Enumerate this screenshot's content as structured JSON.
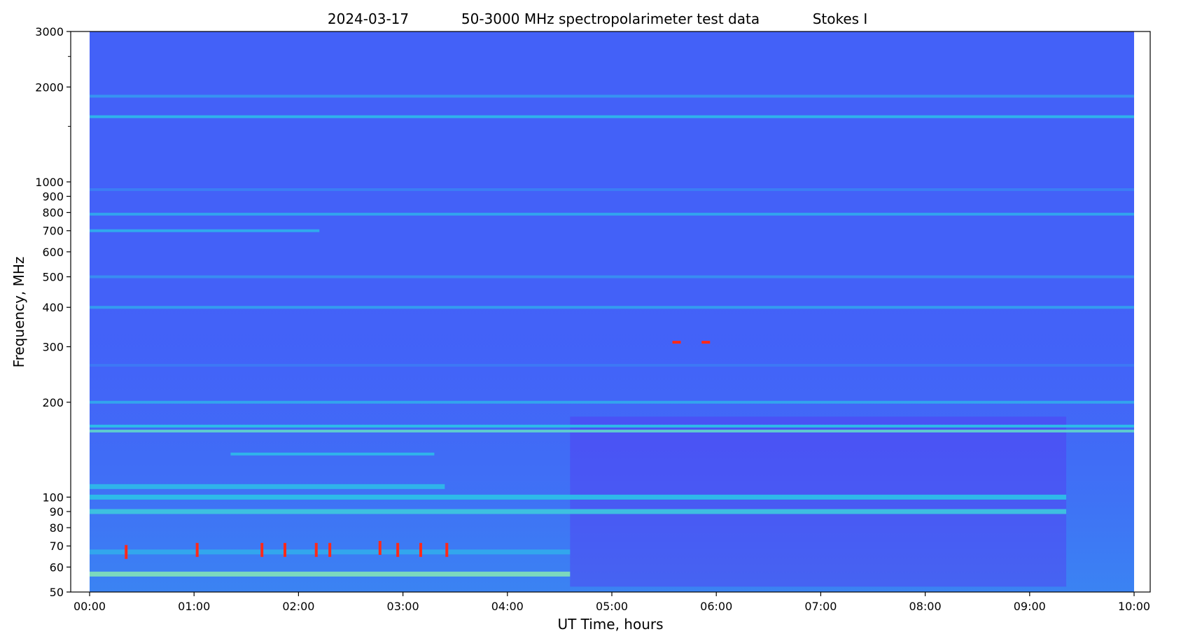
{
  "chart_data": {
    "type": "heatmap",
    "title_parts": [
      "2024-03-17",
      "50-3000 MHz spectropolarimeter test data",
      "Stokes I"
    ],
    "xlabel": "UT Time, hours",
    "ylabel": "Frequency, MHz",
    "x_unit": "hours",
    "xlim": [
      0,
      10
    ],
    "x_ticks": [
      0,
      1,
      2,
      3,
      4,
      5,
      6,
      7,
      8,
      9,
      10
    ],
    "x_tick_labels": [
      "00:00",
      "01:00",
      "02:00",
      "03:00",
      "04:00",
      "05:00",
      "06:00",
      "07:00",
      "08:00",
      "09:00",
      "10:00"
    ],
    "y_scale": "log",
    "ylim": [
      50,
      3000
    ],
    "y_ticks": [
      50,
      60,
      70,
      80,
      90,
      100,
      200,
      300,
      400,
      500,
      600,
      700,
      800,
      900,
      1000,
      2000,
      3000
    ],
    "y_tick_labels": [
      "50",
      "60",
      "70",
      "80",
      "90",
      "100",
      "200",
      "300",
      "400",
      "500",
      "600",
      "700",
      "800",
      "900",
      "1000",
      "2000",
      "3000"
    ],
    "y_minor_ticks": [
      1500,
      2500
    ],
    "colormap": "rainbow",
    "colors": {
      "background": "#4361f8",
      "low": "#5b2cf0",
      "mid": "#2bc3e8",
      "high": "#b8f49a",
      "peak": "#ff2a1a"
    },
    "data_extent_hours": [
      0,
      10
    ],
    "gap_after_hours": 9.35,
    "horizontal_bands": [
      {
        "freq_mhz": 1610,
        "level": 0.55,
        "from": 0,
        "to": 10
      },
      {
        "freq_mhz": 1870,
        "level": 0.35,
        "from": 0,
        "to": 10
      },
      {
        "freq_mhz": 945,
        "level": 0.2,
        "from": 0,
        "to": 10
      },
      {
        "freq_mhz": 790,
        "level": 0.45,
        "from": 0,
        "to": 10
      },
      {
        "freq_mhz": 700,
        "level": 0.5,
        "from": 0,
        "to": 2.2
      },
      {
        "freq_mhz": 500,
        "level": 0.3,
        "from": 0,
        "to": 10
      },
      {
        "freq_mhz": 400,
        "level": 0.4,
        "from": 0,
        "to": 10
      },
      {
        "freq_mhz": 262,
        "level": 0.15,
        "from": 0,
        "to": 10
      },
      {
        "freq_mhz": 200,
        "level": 0.45,
        "from": 0,
        "to": 10
      },
      {
        "freq_mhz": 168,
        "level": 0.6,
        "from": 0,
        "to": 10
      },
      {
        "freq_mhz": 162,
        "level": 0.75,
        "from": 0,
        "to": 10
      },
      {
        "freq_mhz": 137,
        "level": 0.55,
        "from": 1.35,
        "to": 3.3
      },
      {
        "freq_mhz": 108,
        "level": 0.55,
        "from": 0,
        "to": 3.4
      },
      {
        "freq_mhz": 100,
        "level": 0.6,
        "from": 0,
        "to": 9.35
      },
      {
        "freq_mhz": 90,
        "level": 0.65,
        "from": 0,
        "to": 9.35
      },
      {
        "freq_mhz": 67,
        "level": 0.45,
        "from": 0,
        "to": 4.6
      },
      {
        "freq_mhz": 57,
        "level": 0.85,
        "from": 0,
        "to": 4.6
      }
    ],
    "bursts": [
      {
        "time_hours": 0.35,
        "freq_mhz": 67
      },
      {
        "time_hours": 1.03,
        "freq_mhz": 68
      },
      {
        "time_hours": 1.65,
        "freq_mhz": 68
      },
      {
        "time_hours": 1.87,
        "freq_mhz": 68
      },
      {
        "time_hours": 2.17,
        "freq_mhz": 68
      },
      {
        "time_hours": 2.3,
        "freq_mhz": 68
      },
      {
        "time_hours": 2.78,
        "freq_mhz": 69
      },
      {
        "time_hours": 2.95,
        "freq_mhz": 68
      },
      {
        "time_hours": 3.17,
        "freq_mhz": 68
      },
      {
        "time_hours": 3.42,
        "freq_mhz": 68
      },
      {
        "time_hours": 5.62,
        "freq_mhz": 310
      },
      {
        "time_hours": 5.9,
        "freq_mhz": 310
      }
    ]
  }
}
